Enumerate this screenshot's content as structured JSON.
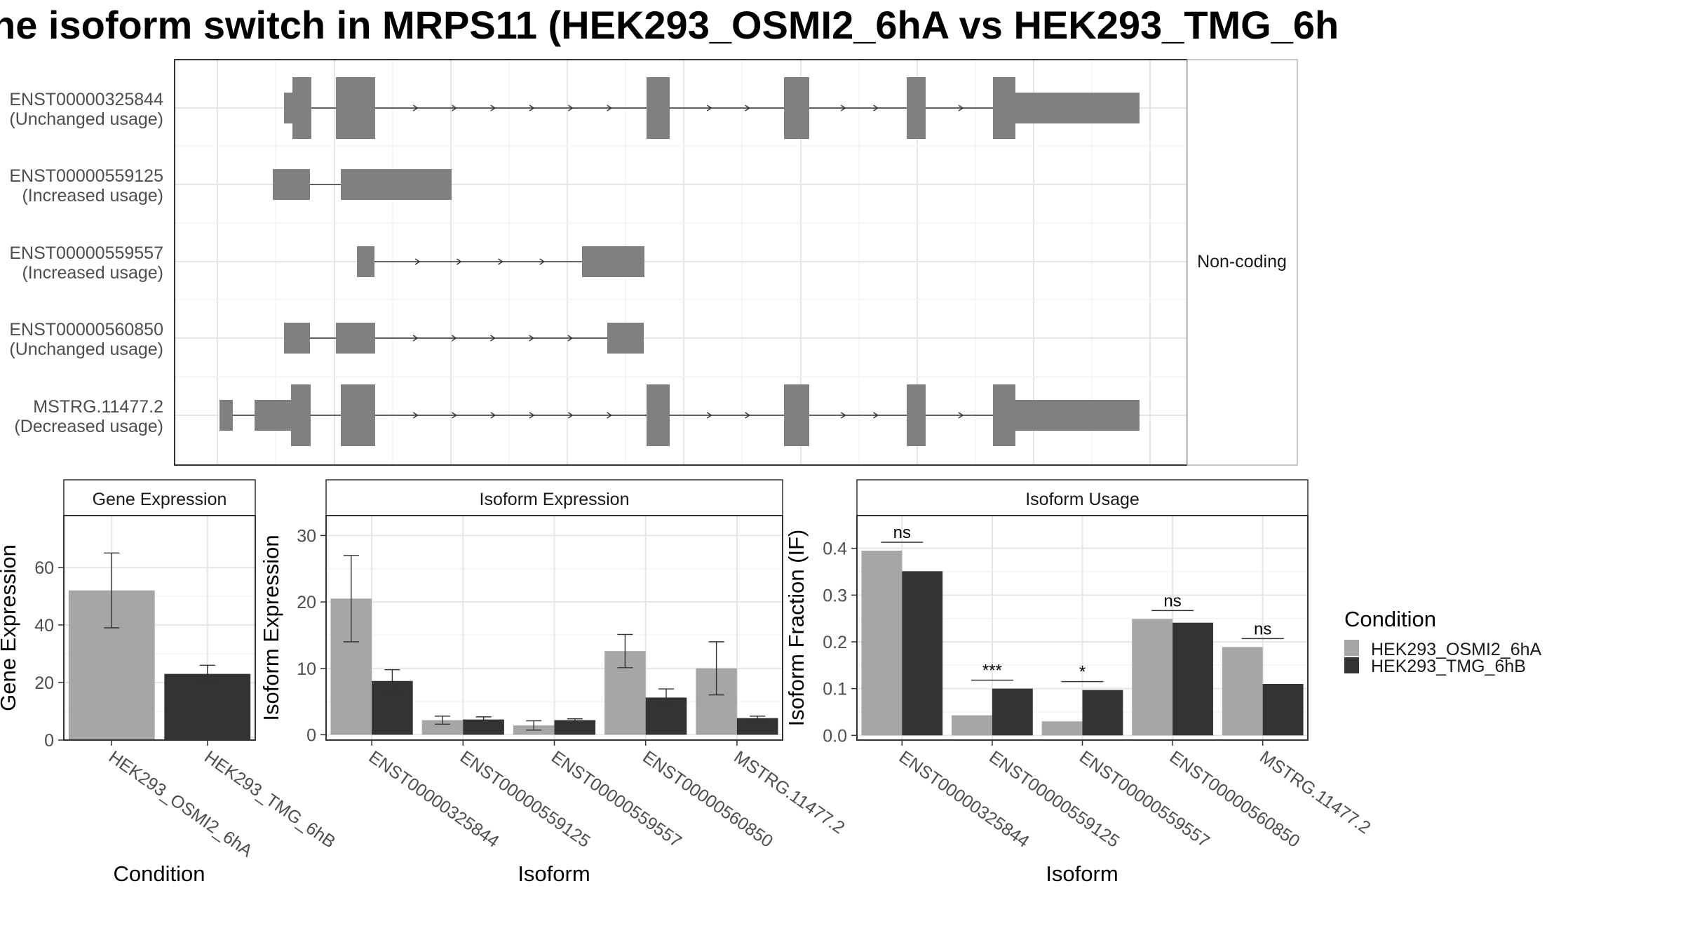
{
  "title": "ne isoform switch in MRPS11 (HEK293_OSMI2_6hA vs HEK293_TMG_6h",
  "colors": {
    "exon": "#808080",
    "condition_a": "#a6a6a6",
    "condition_b": "#333333",
    "panel_border": "#333333",
    "strip_border": "#b3b3b3",
    "grid": "#ebebeb"
  },
  "structure_panel": {
    "strip_label": "Non-coding",
    "transcripts": [
      {
        "id": "ENST00000325844",
        "usage": "(Unchanged usage)"
      },
      {
        "id": "ENST00000559125",
        "usage": "(Increased usage)"
      },
      {
        "id": "ENST00000559557",
        "usage": "(Increased usage)"
      },
      {
        "id": "ENST00000560850",
        "usage": "(Unchanged usage)"
      },
      {
        "id": "MSTRG.11477.2",
        "usage": "(Decreased usage)"
      }
    ]
  },
  "legend": {
    "title": "Condition",
    "items": [
      "HEK293_OSMI2_6hA",
      "HEK293_TMG_6hB"
    ]
  },
  "chart_data": [
    {
      "type": "bar",
      "strip": "Gene Expression",
      "xlabel": "Condition",
      "ylabel": "Gene Expression",
      "ylim": [
        0,
        78
      ],
      "yticks": [
        0,
        20,
        40,
        60
      ],
      "ytick_labels": [
        "0",
        "20",
        "40",
        "60"
      ],
      "categories": [
        "HEK293_OSMI2_6hA",
        "HEK293_TMG_6hB"
      ],
      "series": [
        {
          "values": [
            52,
            23
          ],
          "err_low": [
            39,
            20
          ],
          "err_high": [
            65,
            26
          ]
        }
      ]
    },
    {
      "type": "bar",
      "strip": "Isoform Expression",
      "xlabel": "Isoform",
      "ylabel": "Isoform Expression",
      "ylim": [
        -0.8,
        33
      ],
      "yticks": [
        0,
        10,
        20,
        30
      ],
      "ytick_labels": [
        "0",
        "10",
        "20",
        "30"
      ],
      "categories": [
        "ENST00000325844",
        "ENST00000559125",
        "ENST00000559557",
        "ENST00000560850",
        "MSTRG.11477.2"
      ],
      "series": [
        {
          "name": "HEK293_OSMI2_6hA",
          "values": [
            20.5,
            2.2,
            1.4,
            12.6,
            10
          ],
          "err_low": [
            14,
            1.6,
            0.7,
            10.1,
            6
          ],
          "err_high": [
            27,
            2.8,
            2.1,
            15.1,
            14
          ]
        },
        {
          "name": "HEK293_TMG_6hB",
          "values": [
            8.1,
            2.3,
            2.2,
            5.6,
            2.5
          ],
          "err_low": [
            6.4,
            1.9,
            2.0,
            4.3,
            2.2
          ],
          "err_high": [
            9.8,
            2.7,
            2.4,
            6.9,
            2.8
          ]
        }
      ]
    },
    {
      "type": "bar",
      "strip": "Isoform Usage",
      "xlabel": "Isoform",
      "ylabel": "Isoform Fraction (IF)",
      "ylim": [
        -0.01,
        0.47
      ],
      "yticks": [
        0,
        0.1,
        0.2,
        0.3,
        0.4
      ],
      "ytick_labels": [
        "0.0",
        "0.1",
        "0.2",
        "0.3",
        "0.4"
      ],
      "categories": [
        "ENST00000325844",
        "ENST00000559125",
        "ENST00000559557",
        "ENST00000560850",
        "MSTRG.11477.2"
      ],
      "series": [
        {
          "name": "HEK293_OSMI2_6hA",
          "values": [
            0.395,
            0.043,
            0.03,
            0.249,
            0.189
          ]
        },
        {
          "name": "HEK293_TMG_6hB",
          "values": [
            0.351,
            0.1,
            0.097,
            0.241,
            0.11
          ]
        }
      ],
      "significance": [
        "ns",
        "***",
        "*",
        "ns",
        "ns"
      ]
    }
  ]
}
